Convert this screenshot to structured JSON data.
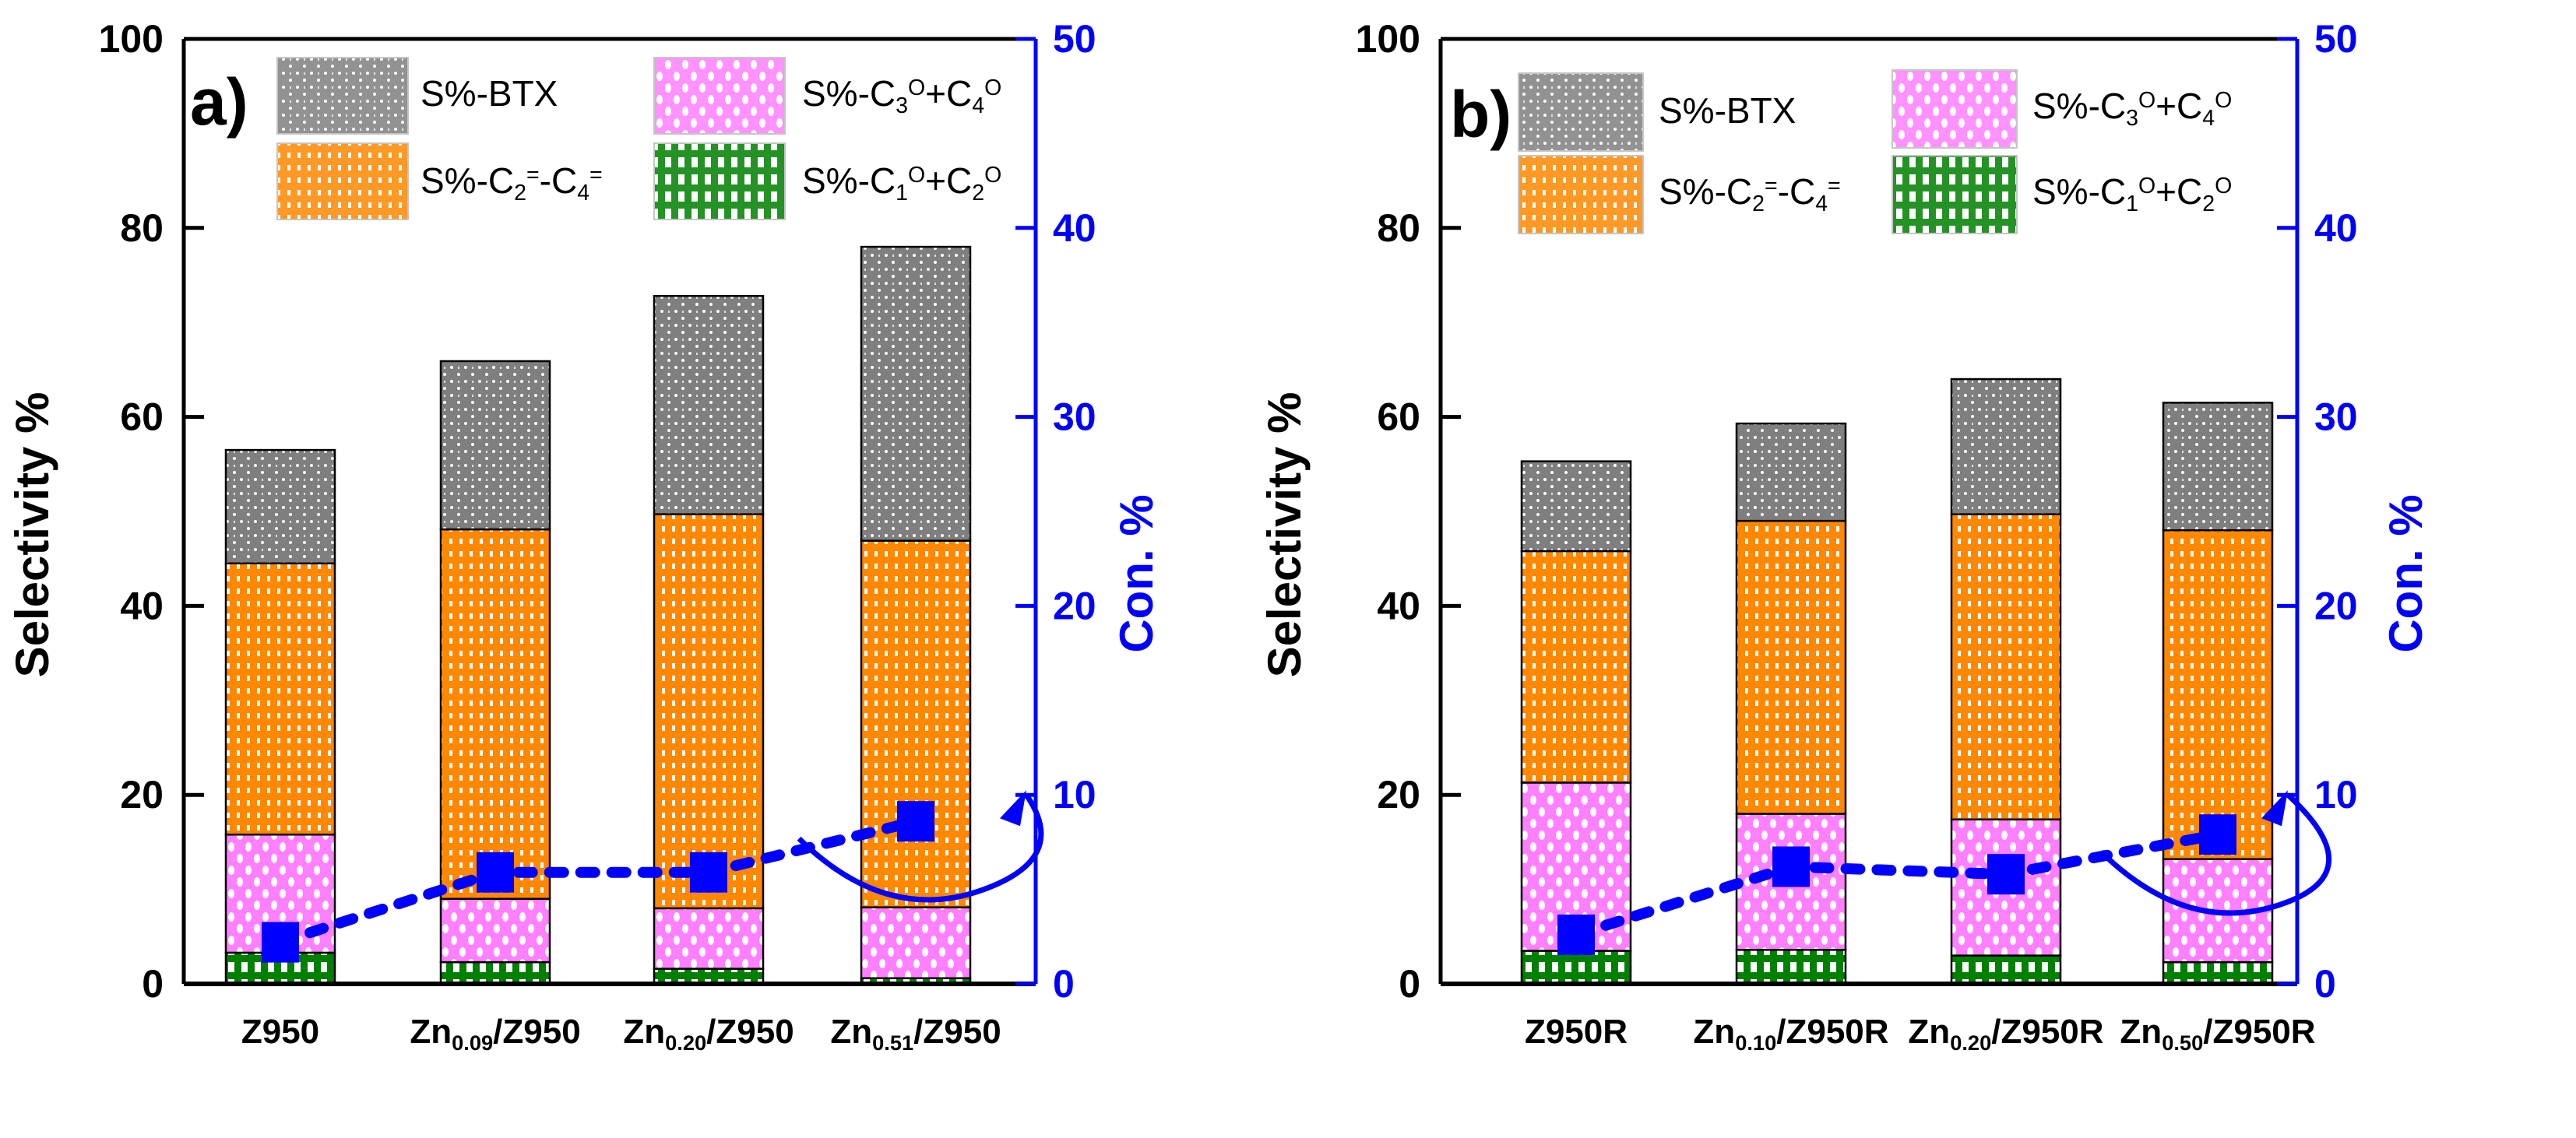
{
  "chart_data": [
    {
      "type": "bar",
      "stacked": true,
      "panel_label": "a)",
      "ylabel": "Selectivity %",
      "y2label": "Con. %",
      "ylim": [
        0,
        100
      ],
      "y2lim": [
        0,
        50
      ],
      "yticks": [
        "0",
        "20",
        "40",
        "60",
        "80",
        "100"
      ],
      "y2ticks": [
        "0",
        "10",
        "20",
        "30",
        "40",
        "50"
      ],
      "categories": [
        [
          {
            "t": "Z950"
          }
        ],
        [
          {
            "t": "Zn"
          },
          {
            "t": "0.09",
            "v": "sub"
          },
          {
            "t": "/Z950"
          }
        ],
        [
          {
            "t": "Zn"
          },
          {
            "t": "0.20",
            "v": "sub"
          },
          {
            "t": "/Z950"
          }
        ],
        [
          {
            "t": "Zn"
          },
          {
            "t": "0.51",
            "v": "sub"
          },
          {
            "t": "/Z950"
          }
        ]
      ],
      "series": [
        {
          "name": "S%-C1O+C2O",
          "key": "green",
          "values": [
            3.3,
            2.3,
            1.6,
            0.6
          ]
        },
        {
          "name": "S%-C3O+C4O",
          "key": "pink",
          "values": [
            12.5,
            6.7,
            6.4,
            7.5
          ]
        },
        {
          "name": "S%-C2=-C4=",
          "key": "orange",
          "values": [
            28.7,
            39.1,
            41.7,
            38.8
          ]
        },
        {
          "name": "S%-BTX",
          "key": "gray",
          "values": [
            12.0,
            17.8,
            23.1,
            31.1
          ]
        }
      ],
      "conversion": {
        "name": "Con. %",
        "axis": "right",
        "values": [
          2.2,
          5.9,
          5.9,
          8.6
        ]
      },
      "legend": [
        {
          "key": "gray",
          "label": [
            {
              "t": "S%-BTX"
            }
          ]
        },
        {
          "key": "orange",
          "label": [
            {
              "t": "S%-C"
            },
            {
              "t": "2",
              "v": "sub"
            },
            {
              "t": "=",
              "v": "sup"
            },
            {
              "t": "-C"
            },
            {
              "t": "4",
              "v": "sub"
            },
            {
              "t": "=",
              "v": "sup"
            }
          ]
        },
        {
          "key": "pink",
          "label": [
            {
              "t": "S%-C"
            },
            {
              "t": "3",
              "v": "sub"
            },
            {
              "t": "O",
              "v": "sup"
            },
            {
              "t": "+C"
            },
            {
              "t": "4",
              "v": "sub"
            },
            {
              "t": "O",
              "v": "sup"
            }
          ]
        },
        {
          "key": "green",
          "label": [
            {
              "t": "S%-C"
            },
            {
              "t": "1",
              "v": "sub"
            },
            {
              "t": "O",
              "v": "sup"
            },
            {
              "t": "+C"
            },
            {
              "t": "2",
              "v": "sub"
            },
            {
              "t": "O",
              "v": "sup"
            }
          ]
        }
      ],
      "legend_position": "top"
    },
    {
      "type": "bar",
      "stacked": true,
      "panel_label": "b)",
      "ylabel": "Selectivity %",
      "y2label": "Con. %",
      "ylim": [
        0,
        100
      ],
      "y2lim": [
        0,
        50
      ],
      "yticks": [
        "0",
        "20",
        "40",
        "60",
        "80",
        "100"
      ],
      "y2ticks": [
        "0",
        "10",
        "20",
        "30",
        "40",
        "50"
      ],
      "categories": [
        [
          {
            "t": "Z950R"
          }
        ],
        [
          {
            "t": "Zn"
          },
          {
            "t": "0.10",
            "v": "sub"
          },
          {
            "t": "/Z950R"
          }
        ],
        [
          {
            "t": "Zn"
          },
          {
            "t": "0.20",
            "v": "sub"
          },
          {
            "t": "/Z950R"
          }
        ],
        [
          {
            "t": "Zn"
          },
          {
            "t": "0.50",
            "v": "sub"
          },
          {
            "t": "/Z950R"
          }
        ]
      ],
      "series": [
        {
          "name": "S%-C1O+C2O",
          "key": "green",
          "values": [
            3.5,
            3.6,
            3.0,
            2.3
          ]
        },
        {
          "name": "S%-C3O+C4O",
          "key": "pink",
          "values": [
            17.8,
            14.4,
            14.4,
            10.9
          ]
        },
        {
          "name": "S%-C2=-C4=",
          "key": "orange",
          "values": [
            24.5,
            31.0,
            32.3,
            34.8
          ]
        },
        {
          "name": "S%-BTX",
          "key": "gray",
          "values": [
            9.5,
            10.3,
            14.3,
            13.5
          ]
        }
      ],
      "conversion": {
        "name": "Con. %",
        "axis": "right",
        "values": [
          2.6,
          6.2,
          5.8,
          7.9
        ]
      },
      "legend": [
        {
          "key": "gray",
          "label": [
            {
              "t": "S%-BTX"
            }
          ]
        },
        {
          "key": "orange",
          "label": [
            {
              "t": "S%-C"
            },
            {
              "t": "2",
              "v": "sub"
            },
            {
              "t": "=",
              "v": "sup"
            },
            {
              "t": "-C"
            },
            {
              "t": "4",
              "v": "sub"
            },
            {
              "t": "=",
              "v": "sup"
            }
          ]
        },
        {
          "key": "pink",
          "label": [
            {
              "t": "S%-C"
            },
            {
              "t": "3",
              "v": "sub"
            },
            {
              "t": "O",
              "v": "sup"
            },
            {
              "t": "+C"
            },
            {
              "t": "4",
              "v": "sub"
            },
            {
              "t": "O",
              "v": "sup"
            }
          ]
        },
        {
          "key": "green",
          "label": [
            {
              "t": "S%-C"
            },
            {
              "t": "1",
              "v": "sub"
            },
            {
              "t": "O",
              "v": "sup"
            },
            {
              "t": "+C"
            },
            {
              "t": "2",
              "v": "sub"
            },
            {
              "t": "O",
              "v": "sup"
            }
          ]
        }
      ],
      "legend_position": "top"
    }
  ],
  "colors": {
    "gray": "#7f7f7f",
    "orange": "#ff8800",
    "pink": "#ff80ff",
    "green": "#008000",
    "conversion": "#0000ff",
    "axis": "#000000"
  }
}
